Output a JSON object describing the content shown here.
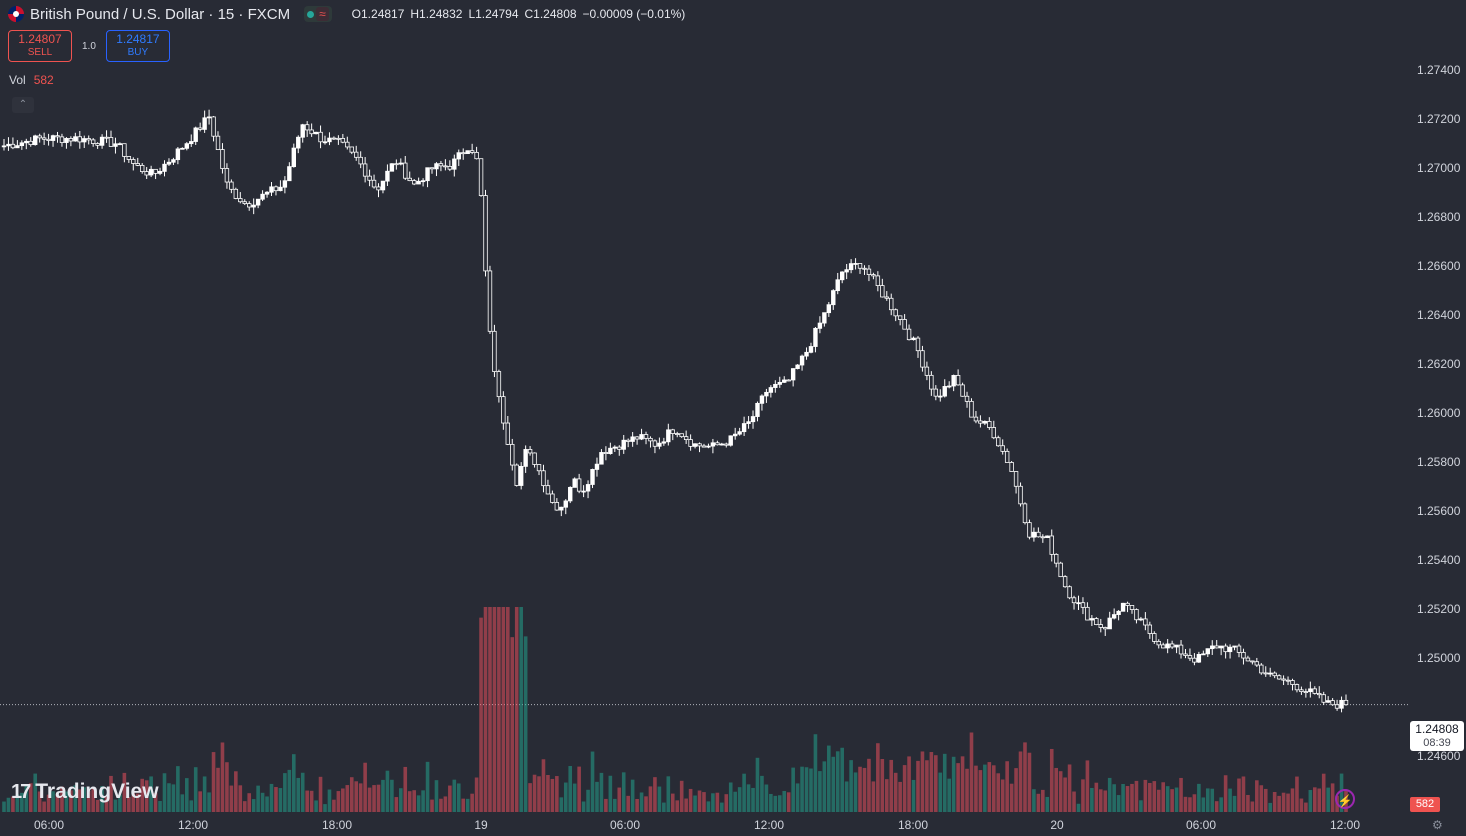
{
  "header": {
    "symbol_title": "British Pound / U.S. Dollar · 15 · FXCM",
    "open": "O1.24817",
    "high": "H1.24832",
    "low": "L1.24794",
    "close": "C1.24808",
    "change": "−0.00009 (−0.01%)",
    "wave_icon": "≈"
  },
  "trade": {
    "sell_price": "1.24807",
    "sell_label": "SELL",
    "quantity": "1.0",
    "buy_price": "1.24817",
    "buy_label": "BUY"
  },
  "volume_legend": {
    "label": "Vol",
    "value": "582"
  },
  "last_price": {
    "price": "1.24808",
    "countdown": "08:39"
  },
  "volume_price_label": "582",
  "logo": {
    "text": "TradingView"
  },
  "icons": {
    "flag": "gbp-usd-flag-icon",
    "bolt": "lightning-icon",
    "settings": "gear-icon",
    "collapse": "chevron-up-icon"
  },
  "colors": {
    "background": "#282b35",
    "up": "#26a69a",
    "down": "#ef5350",
    "candle": "#ffffff",
    "volume_up": "#22ab94",
    "volume_down": "#f7525f"
  },
  "chart_data": {
    "type": "candlestick",
    "price_axis_ticks": [
      "1.27400",
      "1.27200",
      "1.27000",
      "1.26800",
      "1.26600",
      "1.26400",
      "1.26200",
      "1.26000",
      "1.25800",
      "1.25600",
      "1.25400",
      "1.25200",
      "1.25000",
      "1.24600"
    ],
    "time_axis_ticks": [
      "06:00",
      "12:00",
      "18:00",
      "19",
      "06:00",
      "12:00",
      "18:00",
      "20",
      "06:00",
      "12:00"
    ],
    "ylim": [
      1.2448,
      1.2753
    ],
    "close_path": [
      [
        0,
        1.2709
      ],
      [
        4,
        1.2712
      ],
      [
        8,
        1.2712
      ],
      [
        12,
        1.271
      ],
      [
        14,
        1.2701
      ],
      [
        16,
        1.2697
      ],
      [
        18,
        1.2704
      ],
      [
        20,
        1.2712
      ],
      [
        22,
        1.2721
      ],
      [
        24,
        1.2692
      ],
      [
        26,
        1.2685
      ],
      [
        28,
        1.2689
      ],
      [
        30,
        1.2693
      ],
      [
        32,
        1.2718
      ],
      [
        34,
        1.2712
      ],
      [
        36,
        1.271
      ],
      [
        38,
        1.2703
      ],
      [
        40,
        1.2691
      ],
      [
        42,
        1.2703
      ],
      [
        44,
        1.2693
      ],
      [
        46,
        1.27
      ],
      [
        48,
        1.2701
      ],
      [
        50,
        1.271
      ],
      [
        51,
        1.27
      ],
      [
        52,
        1.2636
      ],
      [
        53,
        1.2607
      ],
      [
        54,
        1.259
      ],
      [
        55,
        1.2572
      ],
      [
        56,
        1.2584
      ],
      [
        57,
        1.258
      ],
      [
        58,
        1.2571
      ],
      [
        59,
        1.2562
      ],
      [
        60,
        1.2562
      ],
      [
        61,
        1.2573
      ],
      [
        62,
        1.2568
      ],
      [
        63,
        1.2575
      ],
      [
        64,
        1.2584
      ],
      [
        66,
        1.2587
      ],
      [
        68,
        1.259
      ],
      [
        70,
        1.2587
      ],
      [
        72,
        1.2594
      ],
      [
        74,
        1.2587
      ],
      [
        76,
        1.2586
      ],
      [
        78,
        1.2589
      ],
      [
        80,
        1.2596
      ],
      [
        82,
        1.261
      ],
      [
        84,
        1.2612
      ],
      [
        86,
        1.2624
      ],
      [
        88,
        1.264
      ],
      [
        90,
        1.2658
      ],
      [
        92,
        1.2661
      ],
      [
        94,
        1.265
      ],
      [
        96,
        1.2639
      ],
      [
        98,
        1.2626
      ],
      [
        100,
        1.2606
      ],
      [
        102,
        1.2614
      ],
      [
        104,
        1.2598
      ],
      [
        106,
        1.2593
      ],
      [
        108,
        1.2578
      ],
      [
        110,
        1.2551
      ],
      [
        112,
        1.2548
      ],
      [
        114,
        1.2528
      ],
      [
        116,
        1.2518
      ],
      [
        118,
        1.2512
      ],
      [
        120,
        1.2522
      ],
      [
        122,
        1.2514
      ],
      [
        124,
        1.2506
      ],
      [
        126,
        1.2503
      ],
      [
        128,
        1.2499
      ],
      [
        130,
        1.2505
      ],
      [
        132,
        1.2503
      ],
      [
        134,
        1.2498
      ],
      [
        136,
        1.2492
      ],
      [
        138,
        1.249
      ],
      [
        140,
        1.2486
      ],
      [
        142,
        1.2481
      ],
      [
        144,
        1.2481
      ]
    ],
    "volume_peak": 582
  }
}
